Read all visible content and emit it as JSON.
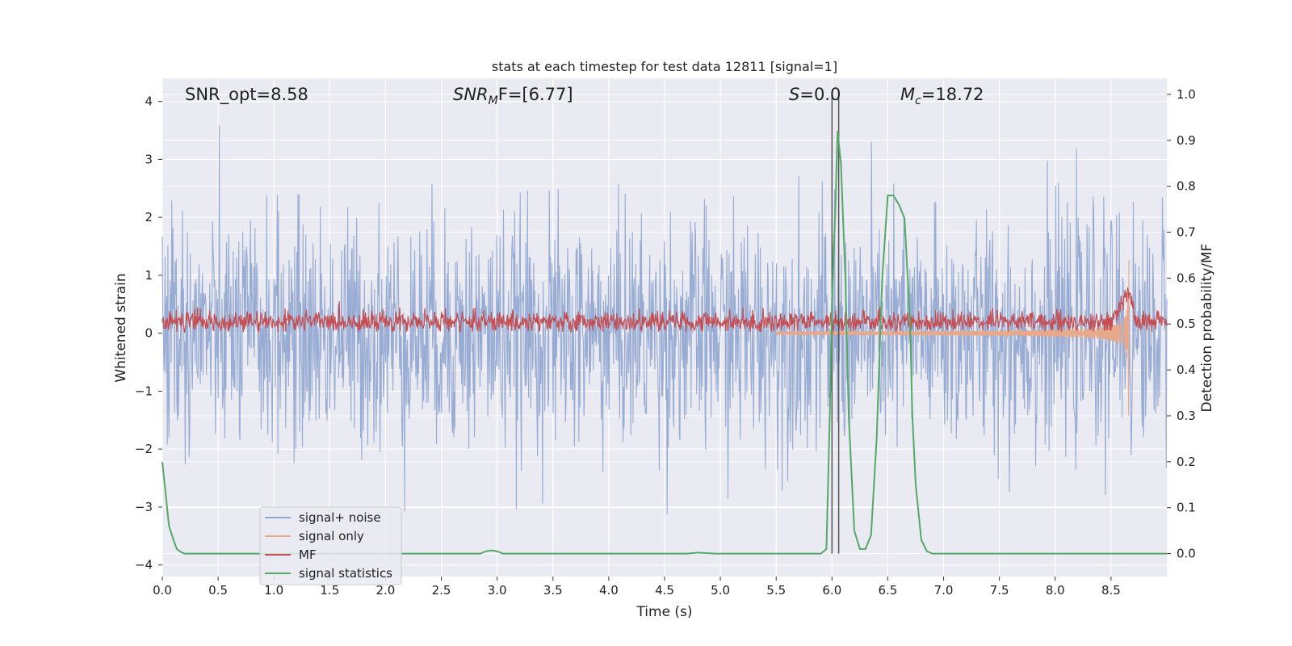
{
  "chart_data": {
    "type": "line",
    "title": "stats at each timestep for test data 12811 [signal=1]",
    "xlabel": "Time (s)",
    "ylabel": "Whitened strain",
    "ylabel_right": "Detection probability/MF",
    "xlim": [
      0,
      9.0
    ],
    "ylim": [
      -4.2,
      4.4
    ],
    "ylim_right": [
      -0.05,
      1.035
    ],
    "x_ticks": [
      0.0,
      0.5,
      1.0,
      1.5,
      2.0,
      2.5,
      3.0,
      3.5,
      4.0,
      4.5,
      5.0,
      5.5,
      6.0,
      6.5,
      7.0,
      7.5,
      8.0,
      8.5
    ],
    "x_tick_labels": [
      "0.0",
      "0.5",
      "1.0",
      "1.5",
      "2.0",
      "2.5",
      "3.0",
      "3.5",
      "4.0",
      "4.5",
      "5.0",
      "5.5",
      "6.0",
      "6.5",
      "7.0",
      "7.5",
      "8.0",
      "8.5"
    ],
    "y_ticks": [
      -4,
      -3,
      -2,
      -1,
      0,
      1,
      2,
      3,
      4
    ],
    "y_tick_labels": [
      "−4",
      "−3",
      "−2",
      "−1",
      "0",
      "1",
      "2",
      "3",
      "4"
    ],
    "y_ticks_right": [
      0.0,
      0.1,
      0.2,
      0.3,
      0.4,
      0.5,
      0.6,
      0.7,
      0.8,
      0.9,
      1.0
    ],
    "y_tick_labels_right": [
      "0.0",
      "0.1",
      "0.2",
      "0.3",
      "0.4",
      "0.5",
      "0.6",
      "0.7",
      "0.8",
      "0.9",
      "1.0"
    ],
    "grid": true,
    "legend_position": "bottom-left",
    "annotations": {
      "snr_opt": "SNR_opt=8.58",
      "snr_mf_main": "SNR",
      "snr_mf_sub": "M",
      "snr_mf_rest": "F=[6.77]",
      "s_main": "S",
      "s_rest": "=0.0",
      "mc_main": "M",
      "mc_sub": "c",
      "mc_rest": "=18.72"
    },
    "vertical_markers": [
      6.0,
      6.06
    ],
    "series": [
      {
        "name": "signal+ noise",
        "color": "#92a8d1",
        "axis": "left",
        "kind": "noise",
        "sigma": 1.0,
        "duration": 9.0,
        "samples": 1800
      },
      {
        "name": "signal only",
        "color": "#e8a98a",
        "axis": "left",
        "kind": "chirp",
        "t_merge": 8.66,
        "amplitude_peak": 1.5
      },
      {
        "name": "MF",
        "color": "#c44e52",
        "axis": "left",
        "kind": "mf",
        "base": 0.2,
        "spread": 0.16
      },
      {
        "name": "signal statistics",
        "color": "#55a868",
        "axis": "right",
        "kind": "points",
        "x": [
          0.0,
          0.03,
          0.06,
          0.1,
          0.13,
          0.17,
          0.2,
          0.3,
          0.5,
          0.6,
          0.8,
          1.0,
          1.5,
          2.0,
          2.5,
          2.85,
          2.9,
          2.95,
          3.0,
          3.05,
          3.1,
          3.5,
          4.0,
          4.5,
          4.7,
          4.8,
          4.95,
          5.0,
          5.5,
          5.9,
          5.95,
          5.98,
          6.0,
          6.03,
          6.05,
          6.08,
          6.12,
          6.15,
          6.2,
          6.25,
          6.3,
          6.35,
          6.4,
          6.45,
          6.5,
          6.55,
          6.6,
          6.65,
          6.7,
          6.72,
          6.75,
          6.8,
          6.85,
          6.9,
          7.0,
          7.5,
          8.0,
          8.5,
          8.9,
          9.0
        ],
        "y": [
          0.2,
          0.13,
          0.06,
          0.03,
          0.01,
          0.003,
          0.0,
          0.0,
          0.0,
          0.0,
          0.0,
          0.0,
          0.0,
          0.0,
          0.0,
          0.0,
          0.005,
          0.007,
          0.005,
          0.0,
          0.0,
          0.0,
          0.0,
          0.0,
          0.0,
          0.002,
          0.0,
          0.0,
          0.0,
          0.0,
          0.01,
          0.3,
          0.55,
          0.75,
          0.92,
          0.85,
          0.6,
          0.3,
          0.05,
          0.01,
          0.01,
          0.04,
          0.25,
          0.6,
          0.78,
          0.78,
          0.76,
          0.73,
          0.5,
          0.3,
          0.15,
          0.03,
          0.005,
          0.0,
          0.0,
          0.0,
          0.0,
          0.0,
          0.0,
          0.0
        ]
      }
    ]
  }
}
